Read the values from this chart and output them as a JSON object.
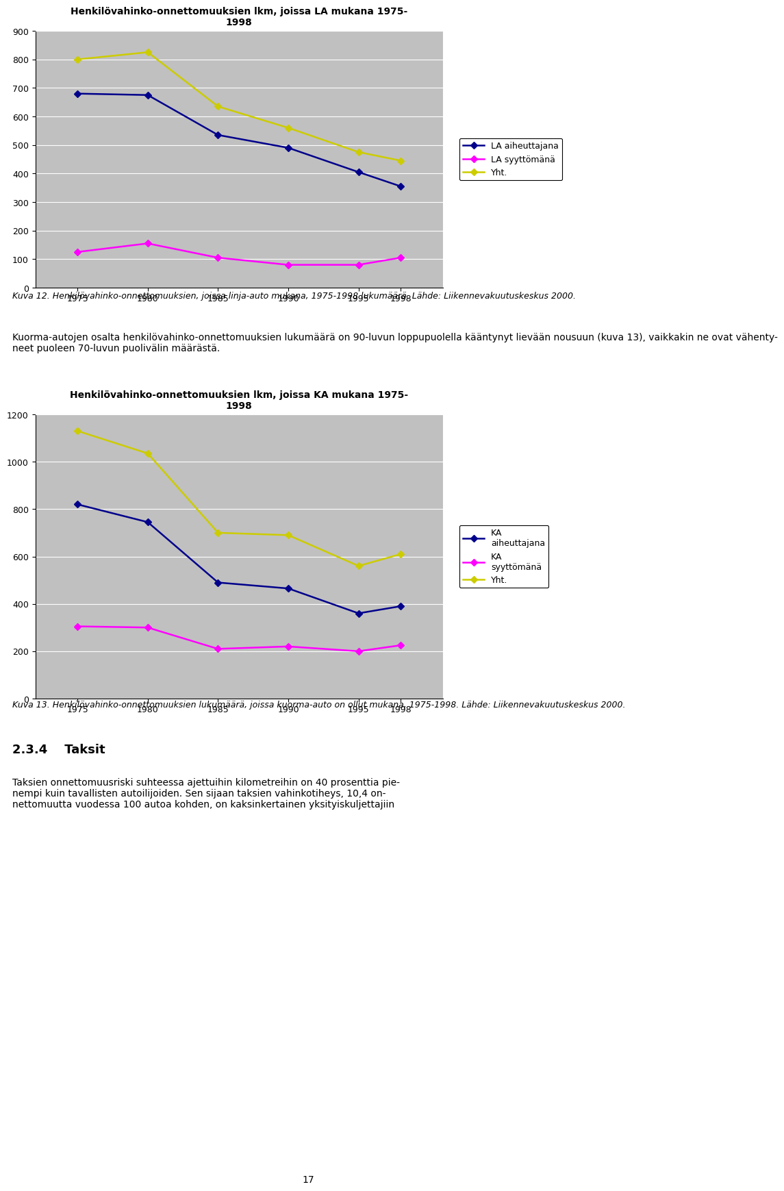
{
  "chart1": {
    "title": "Henkilövahinko-onnettomuuksien lkm, joissa LA mukana 1975-\n1998",
    "years": [
      1975,
      1980,
      1985,
      1990,
      1995,
      1998
    ],
    "series": [
      {
        "key": "la_aiheuttajana",
        "values": [
          680,
          675,
          535,
          490,
          405,
          355
        ],
        "color": "#00008B",
        "label": "LA aiheuttajana"
      },
      {
        "key": "la_syyttomana",
        "values": [
          125,
          155,
          105,
          80,
          80,
          105
        ],
        "color": "#FF00FF",
        "label": "LA syyttömänä"
      },
      {
        "key": "yht",
        "values": [
          800,
          825,
          635,
          560,
          475,
          445
        ],
        "color": "#CCCC00",
        "label": "Yht."
      }
    ],
    "ylim": [
      0,
      900
    ],
    "yticks": [
      0,
      100,
      200,
      300,
      400,
      500,
      600,
      700,
      800,
      900
    ],
    "bg_color": "#C0C0C0"
  },
  "chart2": {
    "title": "Henkilövahinko-onnettomuuksien lkm, joissa KA mukana 1975-\n1998",
    "years": [
      1975,
      1980,
      1985,
      1990,
      1995,
      1998
    ],
    "series": [
      {
        "key": "ka_aiheuttajana",
        "values": [
          820,
          745,
          490,
          465,
          360,
          390
        ],
        "color": "#00008B",
        "label": "KA\naiheuttajana"
      },
      {
        "key": "ka_syyttomana",
        "values": [
          305,
          300,
          210,
          220,
          200,
          225
        ],
        "color": "#FF00FF",
        "label": "KA\nsyyttömänä"
      },
      {
        "key": "yht",
        "values": [
          1130,
          1035,
          700,
          690,
          560,
          610
        ],
        "color": "#CCCC00",
        "label": "Yht."
      }
    ],
    "ylim": [
      0,
      1200
    ],
    "yticks": [
      0,
      200,
      400,
      600,
      800,
      1000,
      1200
    ],
    "bg_color": "#C0C0C0"
  },
  "caption1": "Kuva 12. Henkilövahinko-onnettomuuksien, joissa linja-auto mukana, 1975-1998 lukumäärä. Lähde: Liikennevakuutuskeskus 2000.",
  "paragraph": "Kuorma-autojen osalta henkilövahinko-onnettomuuksien lukumäärä on 90-luvun loppupuolella kääntynyt lievään nousuun (kuva 13), vaikkakin ne ovat vähenty-\nneet puoleen 70-luvun puolivälin määrästä.",
  "caption2": "Kuva 13. Henkilövahinko-onnettomuuksien lukumäärä, joissa kuorma-auto on ollut mukana, 1975-1998. Lähde: Liikennevakuutuskeskus 2000.",
  "section": "2.3.4    Taksit",
  "body_text": "Taksien onnettomuusriski suhteessa ajettuihin kilometreihin on 40 prosenttia pie-\nnempi kuin tavallisten autoilijoiden. Sen sijaan taksien vahinkotiheys, 10,4 on-\nnettomuutta vuodessa 100 autoa kohden, on kaksinkertainen yksityiskuljettajiin",
  "page_number": "17",
  "bg_page": "#FFFFFF"
}
